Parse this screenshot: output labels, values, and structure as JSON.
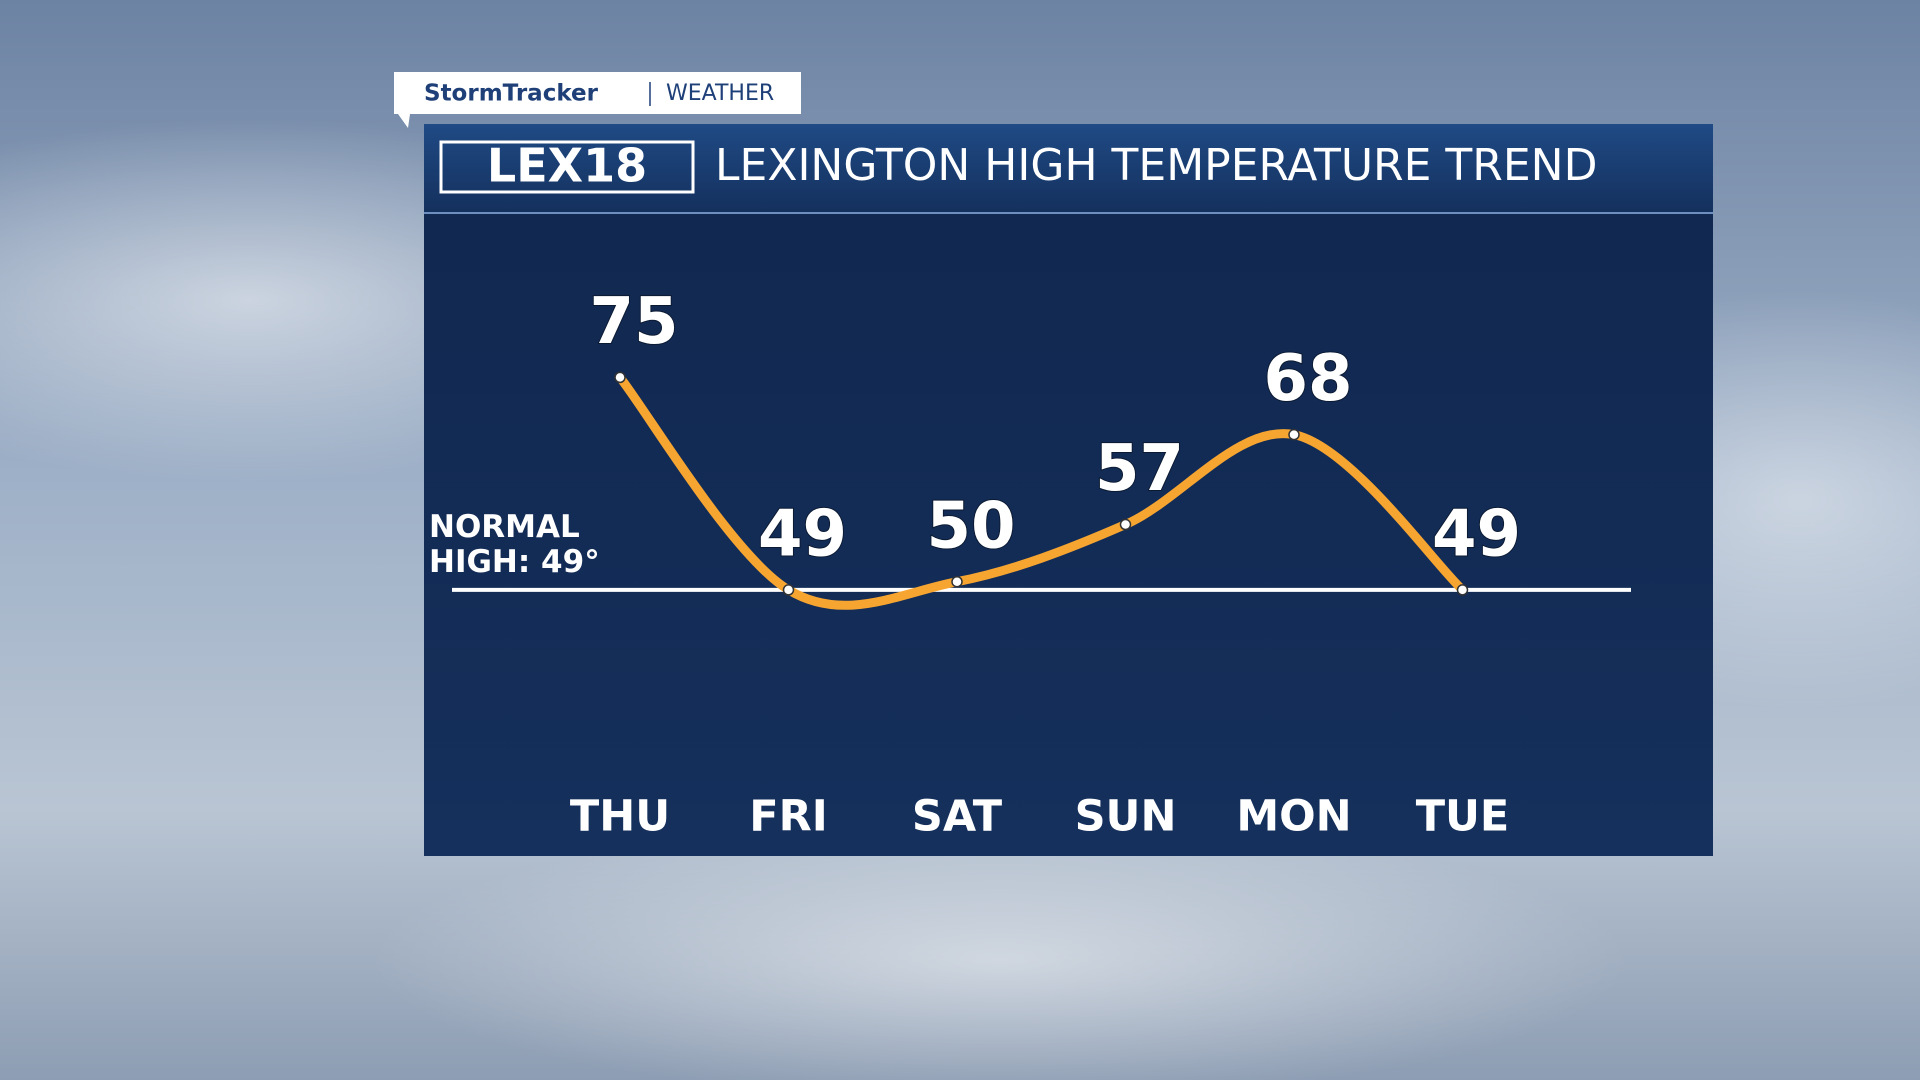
{
  "header": {
    "brand": "StormTracker",
    "section": "WEATHER"
  },
  "chart_data": {
    "type": "line",
    "logo": "LEX18",
    "title": "LEXINGTON HIGH TEMPERATURE TREND",
    "categories": [
      "THU",
      "FRI",
      "SAT",
      "SUN",
      "MON",
      "TUE"
    ],
    "values": [
      75,
      49,
      50,
      57,
      68,
      49
    ],
    "color": "#f7a531",
    "ylim": [
      25,
      95
    ],
    "reference_line": {
      "value": 49,
      "label": "NORMAL HIGH: 49°"
    }
  }
}
